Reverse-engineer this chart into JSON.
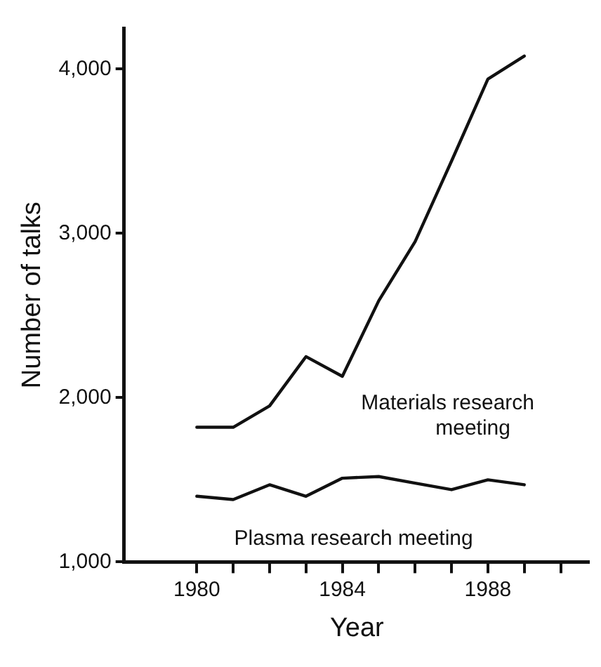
{
  "chart_data": {
    "type": "line",
    "xlabel": "Year",
    "ylabel": "Number of talks",
    "x": [
      1980,
      1981,
      1982,
      1983,
      1984,
      1985,
      1986,
      1987,
      1988,
      1989
    ],
    "series": [
      {
        "name": "Materials research meeting",
        "color": "#111111",
        "values": [
          1820,
          1820,
          1950,
          2250,
          2130,
          2590,
          2950,
          3440,
          3940,
          4080
        ]
      },
      {
        "name": "Plasma research meeting",
        "color": "#111111",
        "values": [
          1400,
          1380,
          1470,
          1400,
          1510,
          1520,
          1480,
          1440,
          1500,
          1470
        ]
      }
    ],
    "xlim": [
      1978,
      1990.8
    ],
    "ylim": [
      1000,
      4250
    ],
    "xticks": [
      1980,
      {
        "value": 1981,
        "label": null
      },
      {
        "value": 1982,
        "label": null
      },
      {
        "value": 1983,
        "label": null
      },
      1984,
      {
        "value": 1985,
        "label": null
      },
      {
        "value": 1986,
        "label": null
      },
      {
        "value": 1987,
        "label": null
      },
      1988,
      {
        "value": 1989,
        "label": null
      },
      {
        "value": 1990,
        "label": null
      }
    ],
    "yticks": [
      {
        "value": 1000,
        "label": "1,000"
      },
      {
        "value": 2000,
        "label": "2,000"
      },
      {
        "value": 3000,
        "label": "3,000"
      },
      {
        "value": 4000,
        "label": "4,000"
      }
    ],
    "grid": false,
    "legend": false,
    "marker": "none",
    "line_style": "solid"
  }
}
